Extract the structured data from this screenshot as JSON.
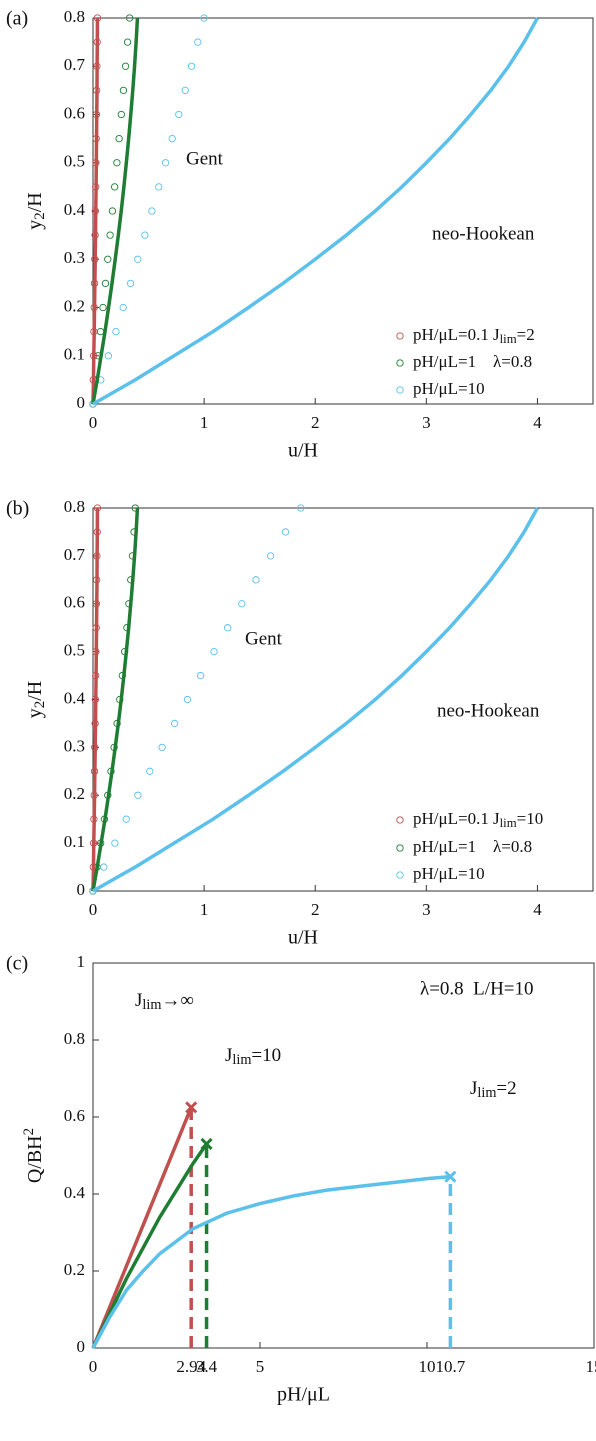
{
  "chart_data": [
    {
      "type": "line",
      "panel": "(a)",
      "xlabel": "u/H",
      "ylabel": [
        {
          "text": "y"
        },
        {
          "sub": "2"
        },
        {
          "text": "/H"
        }
      ],
      "xlim": [
        0,
        4.5
      ],
      "ylim": [
        0,
        0.8
      ],
      "xticks": [
        0,
        1,
        2,
        3,
        4
      ],
      "yticks": [
        0,
        0.1,
        0.2,
        0.3,
        0.4,
        0.5,
        0.6,
        0.7,
        0.8
      ],
      "annotations": [
        "Gent",
        "neo-Hookean"
      ],
      "legend_notes": [
        [
          {
            "text": "J"
          },
          {
            "sub": "lim"
          },
          {
            "text": "=2"
          }
        ],
        "λ=0.8"
      ],
      "series": [
        {
          "name": "pH/μL=0.1",
          "color": "#c0504d",
          "style": "marker",
          "x": [
            0,
            0.003,
            0.006,
            0.008,
            0.011,
            0.014,
            0.016,
            0.019,
            0.021,
            0.024,
            0.026,
            0.029,
            0.031,
            0.033,
            0.035,
            0.038,
            0.04
          ],
          "y": [
            0,
            0.05,
            0.1,
            0.15,
            0.2,
            0.25,
            0.3,
            0.35,
            0.4,
            0.45,
            0.5,
            0.55,
            0.6,
            0.65,
            0.7,
            0.75,
            0.8
          ]
        },
        {
          "name": "pH/μL=1",
          "color": "#1e7d32",
          "style": "marker",
          "x": [
            0,
            0.023,
            0.046,
            0.068,
            0.09,
            0.112,
            0.133,
            0.154,
            0.175,
            0.195,
            0.215,
            0.235,
            0.255,
            0.274,
            0.293,
            0.311,
            0.33
          ],
          "y": [
            0,
            0.05,
            0.1,
            0.15,
            0.2,
            0.25,
            0.3,
            0.35,
            0.4,
            0.45,
            0.5,
            0.55,
            0.6,
            0.65,
            0.7,
            0.75,
            0.8
          ]
        },
        {
          "name": "pH/μL=10",
          "color": "#5bc0eb",
          "style": "marker",
          "x": [
            0,
            0.07,
            0.138,
            0.206,
            0.272,
            0.338,
            0.403,
            0.467,
            0.53,
            0.592,
            0.653,
            0.713,
            0.772,
            0.83,
            0.887,
            0.943,
            1.0
          ],
          "y": [
            0,
            0.05,
            0.1,
            0.15,
            0.2,
            0.25,
            0.3,
            0.35,
            0.4,
            0.45,
            0.5,
            0.55,
            0.6,
            0.65,
            0.7,
            0.75,
            0.8
          ]
        },
        {
          "color": "#c0504d",
          "style": "line",
          "x": [
            0,
            0.004,
            0.007,
            0.011,
            0.014,
            0.017,
            0.02,
            0.023,
            0.025,
            0.028,
            0.03,
            0.032,
            0.034,
            0.036,
            0.037,
            0.039,
            0.04
          ],
          "y": [
            0,
            0.05,
            0.1,
            0.15,
            0.2,
            0.25,
            0.3,
            0.35,
            0.4,
            0.45,
            0.5,
            0.55,
            0.6,
            0.65,
            0.7,
            0.75,
            0.8
          ]
        },
        {
          "color": "#1e7d32",
          "style": "line",
          "x": [
            0,
            0.038,
            0.073,
            0.108,
            0.14,
            0.171,
            0.2,
            0.228,
            0.254,
            0.278,
            0.3,
            0.321,
            0.34,
            0.358,
            0.374,
            0.388,
            0.4
          ],
          "y": [
            0,
            0.05,
            0.1,
            0.15,
            0.2,
            0.25,
            0.3,
            0.35,
            0.4,
            0.45,
            0.5,
            0.55,
            0.6,
            0.65,
            0.7,
            0.75,
            0.8
          ]
        },
        {
          "color": "#5bc0eb",
          "style": "line",
          "x": [
            0,
            0.38,
            0.73,
            1.08,
            1.4,
            1.71,
            2.0,
            2.28,
            2.54,
            2.78,
            3.0,
            3.21,
            3.4,
            3.58,
            3.74,
            3.88,
            4.0
          ],
          "y": [
            0,
            0.05,
            0.1,
            0.15,
            0.2,
            0.25,
            0.3,
            0.35,
            0.4,
            0.45,
            0.5,
            0.55,
            0.6,
            0.65,
            0.7,
            0.75,
            0.8
          ]
        }
      ]
    },
    {
      "type": "line",
      "panel": "(b)",
      "xlabel": "u/H",
      "ylabel": [
        {
          "text": "y"
        },
        {
          "sub": "2"
        },
        {
          "text": "/H"
        }
      ],
      "xlim": [
        0,
        4.5
      ],
      "ylim": [
        0,
        0.8
      ],
      "xticks": [
        0,
        1,
        2,
        3,
        4
      ],
      "yticks": [
        0,
        0.1,
        0.2,
        0.3,
        0.4,
        0.5,
        0.6,
        0.7,
        0.8
      ],
      "annotations": [
        "Gent",
        "neo-Hookean"
      ],
      "legend_notes": [
        [
          {
            "text": "J"
          },
          {
            "sub": "lim"
          },
          {
            "text": "=10"
          }
        ],
        "λ=0.8"
      ],
      "series": [
        {
          "name": "pH/μL=0.1",
          "color": "#c0504d",
          "style": "marker",
          "x": [
            0,
            0.003,
            0.006,
            0.008,
            0.011,
            0.014,
            0.016,
            0.019,
            0.021,
            0.024,
            0.026,
            0.029,
            0.031,
            0.033,
            0.035,
            0.038,
            0.04
          ],
          "y": [
            0,
            0.05,
            0.1,
            0.15,
            0.2,
            0.25,
            0.3,
            0.35,
            0.4,
            0.45,
            0.5,
            0.55,
            0.6,
            0.65,
            0.7,
            0.75,
            0.8
          ]
        },
        {
          "name": "pH/μL=1",
          "color": "#1e7d32",
          "style": "marker",
          "x": [
            0,
            0.036,
            0.069,
            0.103,
            0.133,
            0.162,
            0.19,
            0.217,
            0.241,
            0.264,
            0.285,
            0.305,
            0.323,
            0.34,
            0.355,
            0.369,
            0.38
          ],
          "y": [
            0,
            0.05,
            0.1,
            0.15,
            0.2,
            0.25,
            0.3,
            0.35,
            0.4,
            0.45,
            0.5,
            0.55,
            0.6,
            0.65,
            0.7,
            0.75,
            0.8
          ]
        },
        {
          "name": "pH/μL=10",
          "color": "#5bc0eb",
          "style": "marker",
          "x": [
            0,
            0.097,
            0.197,
            0.299,
            0.404,
            0.511,
            0.622,
            0.735,
            0.85,
            0.968,
            1.089,
            1.212,
            1.339,
            1.467,
            1.599,
            1.733,
            1.87
          ],
          "y": [
            0,
            0.05,
            0.1,
            0.15,
            0.2,
            0.25,
            0.3,
            0.35,
            0.4,
            0.45,
            0.5,
            0.55,
            0.6,
            0.65,
            0.7,
            0.75,
            0.8
          ]
        },
        {
          "color": "#c0504d",
          "style": "line",
          "x": [
            0,
            0.004,
            0.007,
            0.011,
            0.014,
            0.017,
            0.02,
            0.023,
            0.025,
            0.028,
            0.03,
            0.032,
            0.034,
            0.036,
            0.037,
            0.039,
            0.04
          ],
          "y": [
            0,
            0.05,
            0.1,
            0.15,
            0.2,
            0.25,
            0.3,
            0.35,
            0.4,
            0.45,
            0.5,
            0.55,
            0.6,
            0.65,
            0.7,
            0.75,
            0.8
          ]
        },
        {
          "color": "#1e7d32",
          "style": "line",
          "x": [
            0,
            0.038,
            0.073,
            0.108,
            0.14,
            0.171,
            0.2,
            0.228,
            0.254,
            0.278,
            0.3,
            0.321,
            0.34,
            0.358,
            0.374,
            0.388,
            0.4
          ],
          "y": [
            0,
            0.05,
            0.1,
            0.15,
            0.2,
            0.25,
            0.3,
            0.35,
            0.4,
            0.45,
            0.5,
            0.55,
            0.6,
            0.65,
            0.7,
            0.75,
            0.8
          ]
        },
        {
          "color": "#5bc0eb",
          "style": "line",
          "x": [
            0,
            0.38,
            0.73,
            1.08,
            1.4,
            1.71,
            2.0,
            2.28,
            2.54,
            2.78,
            3.0,
            3.21,
            3.4,
            3.58,
            3.74,
            3.88,
            4.0
          ],
          "y": [
            0,
            0.05,
            0.1,
            0.15,
            0.2,
            0.25,
            0.3,
            0.35,
            0.4,
            0.45,
            0.5,
            0.55,
            0.6,
            0.65,
            0.7,
            0.75,
            0.8
          ]
        }
      ]
    },
    {
      "type": "endpoint-line",
      "panel": "(c)",
      "xlabel": "pH/μL",
      "ylabel": [
        {
          "text": "Q/BH"
        },
        {
          "sup": "2"
        }
      ],
      "xlim": [
        0,
        15
      ],
      "ylim": [
        0,
        1
      ],
      "xticks": [
        0,
        2.94,
        3.4,
        5,
        10,
        10.7,
        15
      ],
      "yticks": [
        0,
        0.2,
        0.4,
        0.6,
        0.8,
        1
      ],
      "annotations": [
        "λ=0.8  L/H=10"
      ],
      "series": [
        {
          "name": [
            {
              "text": "J"
            },
            {
              "sub": "lim"
            },
            {
              "text": "→∞"
            }
          ],
          "color": "#c0504d",
          "x": [
            0,
            2.94
          ],
          "y": [
            0,
            0.625
          ]
        },
        {
          "name": [
            {
              "text": "J"
            },
            {
              "sub": "lim"
            },
            {
              "text": "=10"
            }
          ],
          "color": "#1e7d32",
          "x": [
            0,
            1,
            2,
            3,
            3.4
          ],
          "y": [
            0,
            0.18,
            0.34,
            0.48,
            0.53
          ]
        },
        {
          "name": [
            {
              "text": "J"
            },
            {
              "sub": "lim"
            },
            {
              "text": "=2"
            }
          ],
          "color": "#5bc0eb",
          "x": [
            0,
            0.5,
            1,
            1.5,
            2,
            3,
            4,
            5,
            6,
            7,
            8,
            9,
            10,
            10.7
          ],
          "y": [
            0,
            0.08,
            0.15,
            0.2,
            0.245,
            0.31,
            0.35,
            0.375,
            0.395,
            0.41,
            0.42,
            0.43,
            0.44,
            0.445
          ]
        }
      ]
    }
  ]
}
